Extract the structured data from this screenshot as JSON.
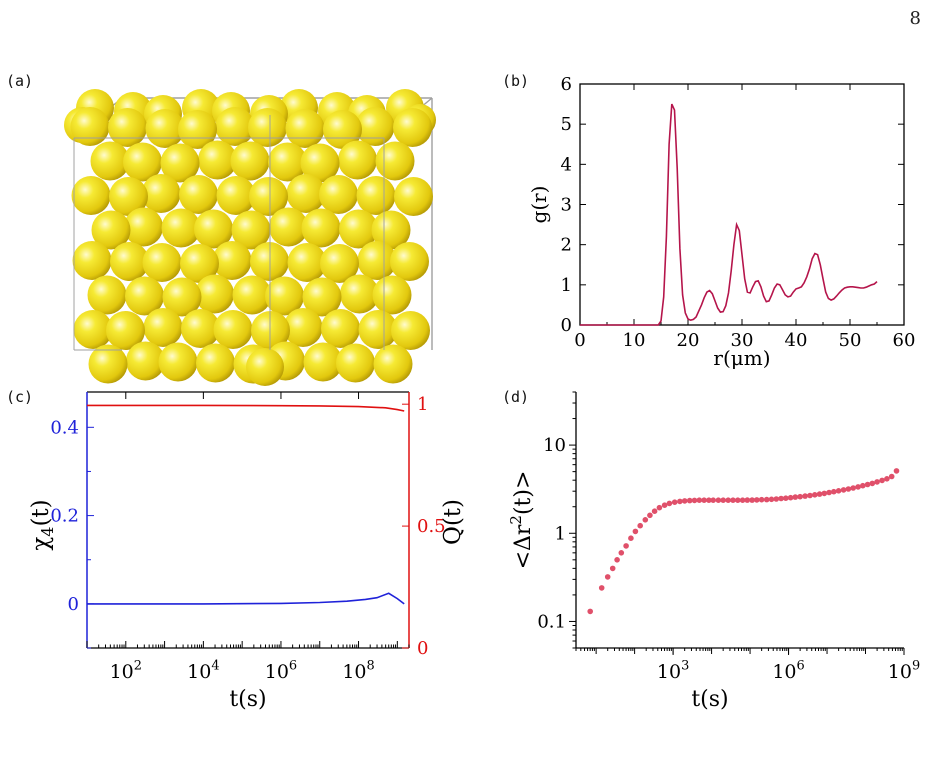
{
  "page": {
    "number": "8"
  },
  "panels": {
    "a": "(a)",
    "b": "(b)",
    "c": "(c)",
    "d": "(d)"
  },
  "colors": {
    "sphere": "#f2e21e",
    "gr_line": "#b5154b",
    "chi_line": "#1f22d9",
    "q_line": "#e01010",
    "msd_points": "#e0506a",
    "axes": "#000000"
  },
  "chart_data": [
    {
      "panel": "a",
      "type": "other",
      "description_visual": "3D rendering of packed yellow spheres in a box",
      "sphere_color": "#f2e21e",
      "box_color": "#a0a0a0"
    },
    {
      "panel": "b",
      "type": "line",
      "xlabel": "r(μm)",
      "ylabel": "g(r)",
      "xlim": [
        0,
        60
      ],
      "ylim": [
        0,
        6
      ],
      "xticks": [
        "0",
        "10",
        "20",
        "30",
        "40",
        "50",
        "60"
      ],
      "yticks": [
        "0",
        "1",
        "2",
        "3",
        "4",
        "5",
        "6"
      ],
      "series": [
        {
          "color": "#b5154b",
          "x": [
            0,
            14.5,
            15.0,
            15.5,
            16.0,
            16.5,
            17.0,
            17.5,
            18.0,
            18.5,
            19.0,
            19.5,
            20.0,
            20.5,
            21.0,
            21.5,
            22.0,
            22.5,
            23.0,
            23.5,
            24.0,
            24.5,
            25.0,
            25.5,
            26.0,
            26.5,
            27.0,
            27.5,
            28.0,
            28.5,
            29.0,
            29.5,
            30.0,
            30.5,
            31.0,
            31.5,
            32.0,
            32.5,
            33.0,
            33.5,
            34.0,
            34.5,
            35.0,
            35.5,
            36.0,
            36.5,
            37.0,
            37.5,
            38.0,
            38.5,
            39.0,
            39.5,
            40.0,
            40.5,
            41.0,
            41.5,
            42.0,
            42.5,
            43.0,
            43.5,
            44.0,
            44.5,
            45.0,
            45.5,
            46.0,
            46.5,
            47.0,
            47.5,
            48.0,
            48.5,
            49.0,
            49.5,
            50.0,
            50.5,
            51.0,
            51.5,
            52.0,
            52.5,
            53.0,
            53.5,
            54.0,
            54.5,
            55.0
          ],
          "y": [
            0,
            0,
            0.1,
            0.7,
            2.2,
            4.5,
            5.5,
            5.35,
            3.9,
            1.9,
            0.75,
            0.3,
            0.15,
            0.12,
            0.14,
            0.2,
            0.35,
            0.5,
            0.68,
            0.82,
            0.86,
            0.78,
            0.6,
            0.42,
            0.32,
            0.33,
            0.48,
            0.8,
            1.35,
            2.0,
            2.5,
            2.35,
            1.75,
            1.15,
            0.82,
            0.8,
            0.95,
            1.08,
            1.1,
            0.95,
            0.72,
            0.58,
            0.6,
            0.75,
            0.92,
            1.02,
            1.0,
            0.88,
            0.75,
            0.7,
            0.72,
            0.82,
            0.9,
            0.92,
            0.95,
            1.05,
            1.2,
            1.4,
            1.65,
            1.78,
            1.75,
            1.5,
            1.15,
            0.82,
            0.66,
            0.62,
            0.65,
            0.72,
            0.8,
            0.87,
            0.92,
            0.94,
            0.95,
            0.95,
            0.94,
            0.93,
            0.92,
            0.92,
            0.94,
            0.97,
            1.0,
            1.02,
            1.08
          ]
        }
      ]
    },
    {
      "panel": "c",
      "type": "line",
      "xlabel": "t(s)",
      "ylabel_left": "χ4(t)",
      "ylabel_right": "Q(t)",
      "x_scale": "log",
      "xlim": [
        10,
        2000000000
      ],
      "ylim_left": [
        -0.1,
        0.48
      ],
      "ylim_right": [
        0,
        1.05
      ],
      "xticks": [
        {
          "base": "10",
          "exp": "2",
          "v": 100
        },
        {
          "base": "10",
          "exp": "4",
          "v": 10000
        },
        {
          "base": "10",
          "exp": "6",
          "v": 1000000
        },
        {
          "base": "10",
          "exp": "8",
          "v": 100000000
        }
      ],
      "yticks_left": [
        "0",
        "0.2",
        "0.4"
      ],
      "yticks_left_values": [
        0,
        0.2,
        0.4
      ],
      "yticks_right": [
        "0",
        "0.5",
        "1"
      ],
      "yticks_right_values": [
        0,
        0.5,
        1
      ],
      "series": [
        {
          "axis": "right",
          "color": "#e01010",
          "x": [
            10,
            100,
            10000,
            1000000,
            10000000,
            100000000,
            500000000,
            1000000000,
            1500000000
          ],
          "y": [
            0.995,
            0.995,
            0.995,
            0.994,
            0.993,
            0.99,
            0.985,
            0.978,
            0.972
          ]
        },
        {
          "axis": "left",
          "color": "#1f22d9",
          "x": [
            10,
            100,
            10000,
            1000000,
            10000000,
            50000000,
            150000000,
            300000000,
            600000000,
            1000000000,
            1500000000
          ],
          "y": [
            0.0,
            0.0,
            0.0,
            0.001,
            0.003,
            0.006,
            0.01,
            0.014,
            0.024,
            0.012,
            0.0
          ]
        }
      ]
    },
    {
      "panel": "d",
      "type": "scatter",
      "xlabel": "t(s)",
      "ylabel": "<Δr²(t)>",
      "x_scale": "log",
      "y_scale": "log",
      "xlim": [
        3,
        1000000000
      ],
      "ylim": [
        0.05,
        40
      ],
      "xticks": [
        {
          "base": "10",
          "exp": "3",
          "v": 1000
        },
        {
          "base": "10",
          "exp": "6",
          "v": 1000000
        },
        {
          "base": "10",
          "exp": "9",
          "v": 1000000000
        }
      ],
      "yticks": [
        "0.1",
        "1",
        "10"
      ],
      "yticks_values": [
        0.1,
        1,
        10
      ],
      "series": [
        {
          "color": "#e0506a",
          "x": [
            7,
            14,
            20,
            27,
            35,
            45,
            60,
            80,
            105,
            140,
            190,
            250,
            330,
            440,
            600,
            800,
            1100,
            1500,
            2000,
            2700,
            3600,
            4800,
            6400,
            8500,
            11000,
            15000,
            20000,
            27000,
            36000,
            48000,
            64000,
            85000,
            113000,
            150000,
            200000,
            270000,
            360000,
            480000,
            640000,
            850000,
            1130000,
            1500000,
            2000000,
            2700000,
            3600000,
            4800000,
            6400000,
            8500000,
            11300000,
            15000000,
            20000000,
            27000000,
            36000000,
            48000000,
            64000000,
            85000000,
            113000000,
            150000000,
            200000000,
            270000000,
            360000000,
            480000000,
            640000000
          ],
          "y": [
            0.13,
            0.24,
            0.32,
            0.4,
            0.5,
            0.6,
            0.72,
            0.88,
            1.05,
            1.22,
            1.42,
            1.6,
            1.78,
            1.95,
            2.08,
            2.18,
            2.25,
            2.3,
            2.33,
            2.35,
            2.36,
            2.37,
            2.37,
            2.37,
            2.37,
            2.37,
            2.37,
            2.37,
            2.37,
            2.37,
            2.37,
            2.38,
            2.38,
            2.39,
            2.4,
            2.41,
            2.43,
            2.45,
            2.48,
            2.5,
            2.53,
            2.57,
            2.6,
            2.64,
            2.68,
            2.73,
            2.78,
            2.83,
            2.9,
            2.96,
            3.03,
            3.1,
            3.18,
            3.26,
            3.36,
            3.46,
            3.57,
            3.68,
            3.82,
            3.98,
            4.15,
            4.4,
            5.1
          ]
        }
      ]
    }
  ]
}
